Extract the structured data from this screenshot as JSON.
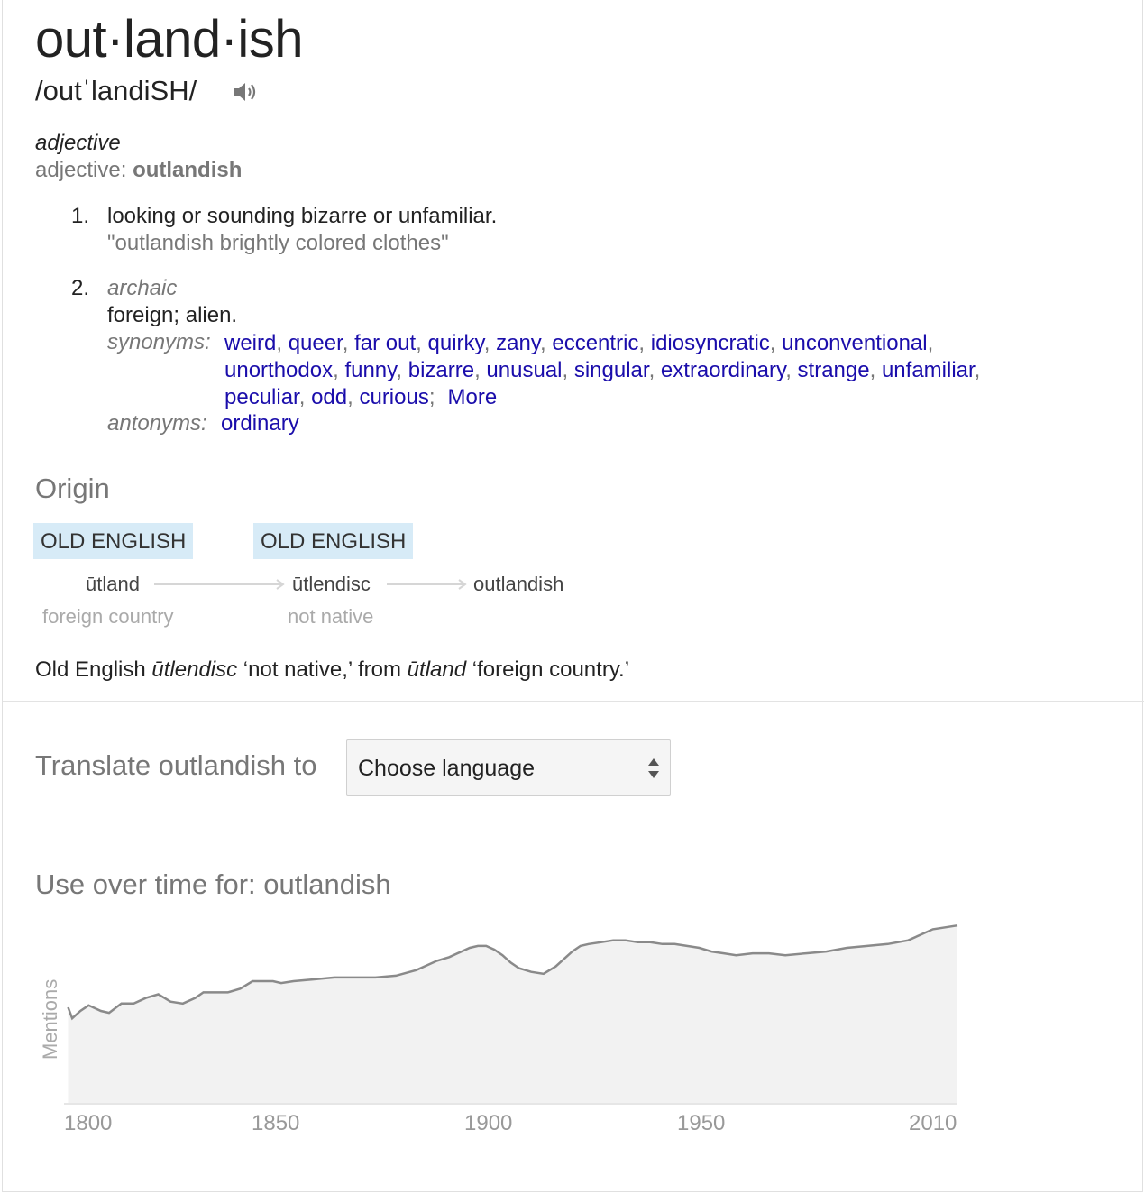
{
  "entry": {
    "headword": "out·land·ish",
    "pronunciation": "/outˈlandiSH/",
    "speaker_icon": "speaker-icon",
    "part_of_speech": "adjective",
    "pos_label": "adjective:",
    "pos_value": "outlandish"
  },
  "senses": [
    {
      "number": "1.",
      "definition": "looking or sounding bizarre or unfamiliar.",
      "example": "\"outlandish brightly colored clothes\""
    },
    {
      "number": "2.",
      "register": "archaic",
      "definition": "foreign; alien.",
      "synonyms_label": "synonyms:",
      "synonyms": [
        "weird",
        "queer",
        "far out",
        "quirky",
        "zany",
        "eccentric",
        "idiosyncratic",
        "unconventional",
        "unorthodox",
        "funny",
        "bizarre",
        "unusual",
        "singular",
        "extraordinary",
        "strange",
        "unfamiliar",
        "peculiar",
        "odd",
        "curious"
      ],
      "more_label": "More",
      "antonyms_label": "antonyms:",
      "antonyms": [
        "ordinary"
      ]
    }
  ],
  "origin": {
    "title": "Origin",
    "nodes": [
      {
        "language": "OLD ENGLISH",
        "word": "ūtland",
        "gloss": "foreign country"
      },
      {
        "language": "OLD ENGLISH",
        "word": "ūtlendisc",
        "gloss": "not native"
      },
      {
        "language": "",
        "word": "outlandish",
        "gloss": ""
      }
    ],
    "text_1": "Old English ",
    "text_word_1": "ūtlendisc",
    "text_2": " ‘not native,’ from ",
    "text_word_2": "ūtland",
    "text_3": " ‘foreign country.’"
  },
  "translate": {
    "label": "Translate outlandish to",
    "select_value": "Choose language"
  },
  "usage": {
    "title": "Use over time for: outlandish"
  },
  "chart_data": {
    "type": "area",
    "title": "Use over time for: outlandish",
    "ylabel": "Mentions",
    "xlabel": "",
    "x_ticks": [
      "1800",
      "1850",
      "1900",
      "1950",
      "2010"
    ],
    "xlim": [
      1794,
      2012
    ],
    "ylim": [
      0,
      100
    ],
    "grid": false,
    "color_fill": "#f2f2f2",
    "color_line": "#8a8a8a",
    "x": [
      1795,
      1796,
      1798,
      1800,
      1803,
      1805,
      1808,
      1811,
      1814,
      1817,
      1820,
      1823,
      1826,
      1828,
      1831,
      1834,
      1837,
      1840,
      1843,
      1845,
      1847,
      1850,
      1855,
      1860,
      1865,
      1870,
      1875,
      1880,
      1885,
      1888,
      1891,
      1893,
      1895,
      1897,
      1899,
      1901,
      1903,
      1905,
      1908,
      1911,
      1914,
      1916,
      1918,
      1920,
      1922,
      1925,
      1928,
      1931,
      1934,
      1937,
      1940,
      1943,
      1946,
      1949,
      1952,
      1955,
      1958,
      1962,
      1966,
      1970,
      1975,
      1980,
      1985,
      1990,
      1995,
      2000,
      2003,
      2006,
      2009,
      2012
    ],
    "y": [
      52,
      46,
      50,
      53,
      50,
      49,
      54,
      54,
      57,
      59,
      55,
      54,
      57,
      60,
      60,
      60,
      62,
      66,
      66,
      66,
      65,
      66,
      67,
      68,
      68,
      68,
      69,
      72,
      77,
      79,
      82,
      84,
      85,
      85,
      83,
      80,
      76,
      73,
      71,
      70,
      74,
      78,
      82,
      85,
      86,
      87,
      88,
      88,
      87,
      87,
      86,
      86,
      85,
      84,
      82,
      81,
      80,
      81,
      81,
      80,
      81,
      82,
      84,
      85,
      86,
      88,
      91,
      94,
      95,
      96
    ]
  }
}
